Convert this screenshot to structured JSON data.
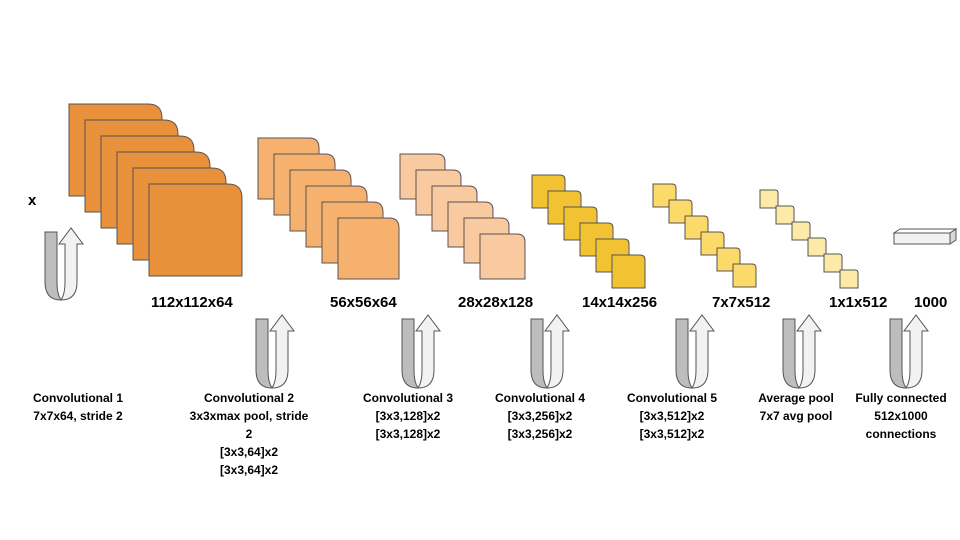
{
  "input_label": "x",
  "colors": {
    "conv1": "#e8913a",
    "conv2": "#f6b16f",
    "conv3": "#f9c9a0",
    "conv4": "#f1c232",
    "conv5": "#fcda6a",
    "avgpool": "#fde9a8",
    "fc": "#f2f2f2",
    "arrow_dark": "#bdbdbd",
    "arrow_light": "#f2f2f2",
    "outline": "#555555"
  },
  "dimensions": [
    "112x112x64",
    "56x56x64",
    "28x28x128",
    "14x14x256",
    "7x7x512",
    "1x1x512",
    "1000"
  ],
  "layers": [
    {
      "lines": [
        "Convolutional 1",
        "7x7x64, stride 2"
      ]
    },
    {
      "lines": [
        "Convolutional 2",
        "3x3xmax pool, stride",
        "2",
        "[3x3,64]x2",
        "[3x3,64]x2"
      ]
    },
    {
      "lines": [
        "Convolutional 3",
        "[3x3,128]x2",
        "[3x3,128]x2"
      ]
    },
    {
      "lines": [
        "Convolutional 4",
        "[3x3,256]x2",
        "[3x3,256]x2"
      ]
    },
    {
      "lines": [
        "Convolutional 5",
        "[3x3,512]x2",
        "[3x3,512]x2"
      ]
    },
    {
      "lines": [
        "Average pool",
        "7x7 avg pool"
      ]
    },
    {
      "lines": [
        "Fully connected",
        "512x1000",
        "connections"
      ]
    }
  ]
}
